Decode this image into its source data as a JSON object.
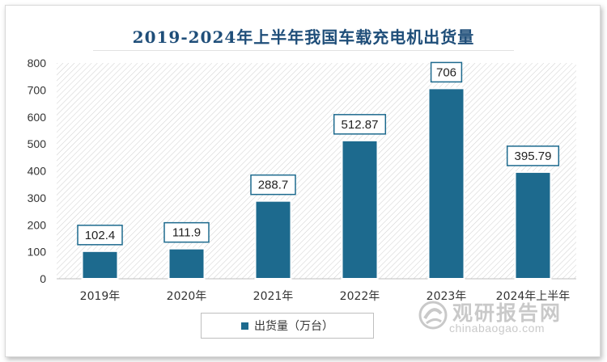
{
  "colors": {
    "bar": "#1d6a8e",
    "title": "#1f4e79",
    "axis_text": "#333333",
    "hatch": "#cfcfcf",
    "watermark": "#9e9e9e"
  },
  "watermark": {
    "name_cn": "观研报告网",
    "site": "chinabaogao.com",
    "icon": "circle-swirl-logo-icon"
  },
  "chart_data": {
    "type": "bar",
    "title": "2019-2024年上半年我国车载充电机出货量",
    "categories": [
      "2019年",
      "2020年",
      "2021年",
      "2022年",
      "2023年",
      "2024年上半年"
    ],
    "series": [
      {
        "name": "出货量（万台）",
        "values": [
          102.4,
          111.9,
          288.7,
          512.87,
          706,
          395.79
        ],
        "labels": [
          "102.4",
          "111.9",
          "288.7",
          "512.87",
          "706",
          "395.79"
        ]
      }
    ],
    "yticks": [
      "0",
      "100",
      "200",
      "300",
      "400",
      "500",
      "600",
      "700",
      "800"
    ],
    "ylim": [
      0,
      800
    ],
    "xlabel": "",
    "ylabel": "",
    "grid": false,
    "legend_position": "bottom",
    "background_pattern": "diagonal-hatch"
  }
}
